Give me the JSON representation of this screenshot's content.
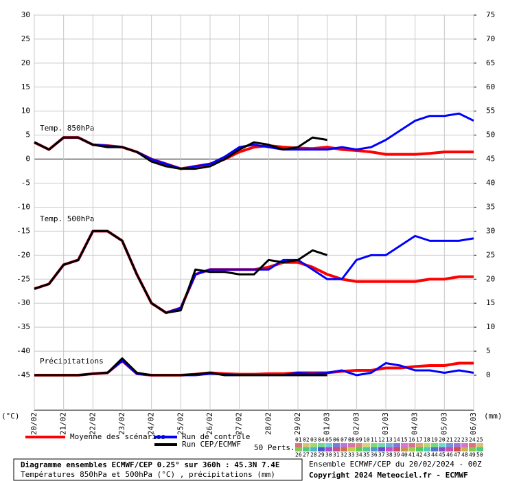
{
  "chart_data": {
    "type": "line",
    "title": "Diagramme ensembles ECMWF/CEP 0.25° sur 360h : 45.3N 7.4E",
    "subtitle": "Températures 850hPa et 500hPa (°C) , précipitations (mm)",
    "run_info": "Ensemble ECMWF/CEP du 20/02/2024 - 00Z",
    "copyright": "Copyright 2024 Meteociel.fr - ECMWF",
    "ylabel": "(°C)",
    "y2label": "(mm)",
    "annotations": [
      "Temp. 850hPa",
      "Temp. 500hPa",
      "Précipitations"
    ],
    "perturbations_label": "50 Perts.",
    "perturbation_labels": [
      "01",
      "02",
      "03",
      "04",
      "05",
      "06",
      "07",
      "08",
      "09",
      "10",
      "11",
      "12",
      "13",
      "14",
      "15",
      "16",
      "17",
      "18",
      "19",
      "20",
      "21",
      "22",
      "23",
      "24",
      "25",
      "26",
      "27",
      "28",
      "29",
      "30",
      "31",
      "32",
      "33",
      "34",
      "35",
      "36",
      "37",
      "38",
      "39",
      "40",
      "41",
      "42",
      "43",
      "44",
      "45",
      "46",
      "47",
      "48",
      "49",
      "50"
    ],
    "xlim": [
      0,
      360
    ],
    "x": [
      0,
      12,
      24,
      36,
      48,
      60,
      72,
      84,
      96,
      108,
      120,
      132,
      144,
      156,
      168,
      180,
      192,
      204,
      216,
      228,
      240,
      252,
      264,
      276,
      288,
      300,
      312,
      324,
      336,
      348,
      360
    ],
    "xticks": [
      {
        "value": 0,
        "label": "20/02"
      },
      {
        "value": 24,
        "label": "21/02"
      },
      {
        "value": 48,
        "label": "22/02"
      },
      {
        "value": 72,
        "label": "23/02"
      },
      {
        "value": 96,
        "label": "24/02"
      },
      {
        "value": 120,
        "label": "25/02"
      },
      {
        "value": 144,
        "label": "26/02"
      },
      {
        "value": 168,
        "label": "27/02"
      },
      {
        "value": 192,
        "label": "28/02"
      },
      {
        "value": 216,
        "label": "29/02"
      },
      {
        "value": 240,
        "label": "01/03"
      },
      {
        "value": 264,
        "label": "02/03"
      },
      {
        "value": 288,
        "label": "03/03"
      },
      {
        "value": 312,
        "label": "04/03"
      },
      {
        "value": 336,
        "label": "05/03"
      },
      {
        "value": 360,
        "label": "06/03"
      }
    ],
    "ylim": [
      -52.3,
      30
    ],
    "yticks": [
      30,
      25,
      20,
      15,
      10,
      5,
      0,
      -5,
      -10,
      -15,
      -20,
      -25,
      -30,
      -35,
      -40,
      -45
    ],
    "y2lim": [
      -7.3,
      75
    ],
    "y2ticks": [
      75,
      70,
      65,
      60,
      55,
      50,
      45,
      40,
      35,
      30,
      25,
      20,
      15,
      10,
      5,
      0
    ],
    "grid": true,
    "series": [
      {
        "name": "Moyenne des scénarios",
        "color": "#ff0000",
        "t850": [
          3.5,
          2,
          4.5,
          4.5,
          3,
          2.8,
          2.5,
          1.5,
          0,
          -1,
          -2,
          -1.5,
          -1,
          0,
          1.5,
          2.5,
          2.8,
          2.5,
          2.3,
          2.2,
          2.5,
          2,
          1.8,
          1.5,
          1,
          1,
          1,
          1.2,
          1.5,
          1.5,
          1.5
        ],
        "t500": [
          -27,
          -26,
          -22,
          -21,
          -15,
          -15,
          -17,
          -24,
          -30,
          -32,
          -31,
          -24,
          -23,
          -23,
          -23,
          -23,
          -22.5,
          -21.5,
          -21.5,
          -22.5,
          -24,
          -25,
          -25.5,
          -25.5,
          -25.5,
          -25.5,
          -25.5,
          -25,
          -25,
          -24.5,
          -24.5
        ],
        "precip": [
          0,
          0,
          0,
          0,
          0.3,
          0.5,
          3,
          0.3,
          0,
          0,
          0,
          0.2,
          0.5,
          0.3,
          0.2,
          0.2,
          0.3,
          0.3,
          0.5,
          0.5,
          0.5,
          0.8,
          1,
          1,
          1.5,
          1.5,
          1.8,
          2,
          2,
          2.5,
          2.5
        ]
      },
      {
        "name": "Run de contrôle",
        "color": "#0000ff",
        "t850": [
          3.5,
          2,
          4.5,
          4.5,
          3,
          2.8,
          2.5,
          1.5,
          0,
          -1,
          -2,
          -1.5,
          -1,
          0.5,
          2.5,
          3,
          2.5,
          2,
          2,
          2,
          2,
          2.5,
          2,
          2.5,
          4,
          6,
          8,
          9,
          9,
          9.5,
          8
        ],
        "t500": [
          -27,
          -26,
          -22,
          -21,
          -15,
          -15,
          -17,
          -24,
          -30,
          -32,
          -31,
          -24,
          -23,
          -23,
          -23,
          -23,
          -23,
          -21,
          -21,
          -23,
          -25,
          -25,
          -21,
          -20,
          -20,
          -18,
          -16,
          -17,
          -17,
          -17,
          -16.5
        ],
        "precip": [
          0,
          0,
          0,
          0,
          0.3,
          0.5,
          3,
          0.3,
          0,
          0,
          0,
          0,
          0.3,
          0.2,
          0,
          0,
          0,
          0,
          0.5,
          0.3,
          0.5,
          1,
          0,
          0.5,
          2.5,
          2,
          1,
          1,
          0.5,
          1,
          0.5
        ]
      },
      {
        "name": "Run CEP/ECMWF",
        "color": "#000000",
        "t850": [
          3.5,
          2,
          4.5,
          4.5,
          3,
          2.5,
          2.5,
          1.5,
          -0.5,
          -1.5,
          -2,
          -2,
          -1.5,
          0,
          2,
          3.5,
          3,
          2,
          2.5,
          4.5,
          4,
          null,
          null,
          null,
          null,
          null,
          null,
          null,
          null,
          null,
          null
        ],
        "t500": [
          -27,
          -26,
          -22,
          -21,
          -15,
          -15,
          -17,
          -24,
          -30,
          -32,
          -31.5,
          -23,
          -23.5,
          -23.5,
          -24,
          -24,
          -21,
          -21.5,
          -21,
          -19,
          -20,
          null,
          null,
          null,
          null,
          null,
          null,
          null,
          null,
          null,
          null
        ],
        "precip": [
          0,
          0,
          0,
          0,
          0.3,
          0.5,
          3.5,
          0.5,
          0,
          0,
          0,
          0.2,
          0.5,
          0,
          0,
          0,
          0,
          0,
          0,
          0,
          0,
          null,
          null,
          null,
          null,
          null,
          null,
          null,
          null,
          null,
          null
        ]
      }
    ]
  }
}
